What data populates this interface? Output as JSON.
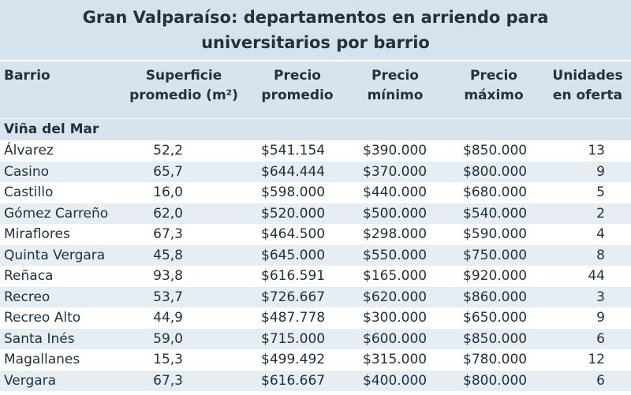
{
  "title": {
    "line1": "Gran Valparaíso: departamentos en arriendo para",
    "line2": "universitarios por barrio"
  },
  "colors": {
    "header_band": "#d4e3ee",
    "row_alt": "#e6eef4",
    "text": "#22313c"
  },
  "chart_data": {
    "type": "table",
    "title": "Gran Valparaíso: departamentos en arriendo para universitarios por barrio",
    "columns": [
      "Barrio",
      "Superficie promedio (m²)",
      "Precio promedio",
      "Precio mínimo",
      "Precio máximo",
      "Unidades en oferta"
    ],
    "column_headers": {
      "barrio": "Barrio",
      "sup_l1": "Superficie",
      "sup_l2": "promedio (m²)",
      "prom_l1": "Precio",
      "prom_l2": "promedio",
      "min_l1": "Precio",
      "min_l2": "mínimo",
      "max_l1": "Precio",
      "max_l2": "máximo",
      "uni_l1": "Unidades",
      "uni_l2": "en oferta"
    },
    "section": "Viña del Mar",
    "rows": [
      {
        "barrio": "Álvarez",
        "superficie": "52,2",
        "precio_promedio": "$541.154",
        "precio_minimo": "$390.000",
        "precio_maximo": "$850.000",
        "unidades": "13"
      },
      {
        "barrio": "Casino",
        "superficie": "65,7",
        "precio_promedio": "$644.444",
        "precio_minimo": "$370.000",
        "precio_maximo": "$800.000",
        "unidades": "9"
      },
      {
        "barrio": "Castillo",
        "superficie": "16,0",
        "precio_promedio": "$598.000",
        "precio_minimo": "$440.000",
        "precio_maximo": "$680.000",
        "unidades": "5"
      },
      {
        "barrio": "Gómez Carreño",
        "superficie": "62,0",
        "precio_promedio": "$520.000",
        "precio_minimo": "$500.000",
        "precio_maximo": "$540.000",
        "unidades": "2"
      },
      {
        "barrio": "Miraflores",
        "superficie": "67,3",
        "precio_promedio": "$464.500",
        "precio_minimo": "$298.000",
        "precio_maximo": "$590.000",
        "unidades": "4"
      },
      {
        "barrio": "Quinta Vergara",
        "superficie": "45,8",
        "precio_promedio": "$645.000",
        "precio_minimo": "$550.000",
        "precio_maximo": "$750.000",
        "unidades": "8"
      },
      {
        "barrio": "Reñaca",
        "superficie": "93,8",
        "precio_promedio": "$616.591",
        "precio_minimo": "$165.000",
        "precio_maximo": "$920.000",
        "unidades": "44"
      },
      {
        "barrio": "Recreo",
        "superficie": "53,7",
        "precio_promedio": "$726.667",
        "precio_minimo": "$620.000",
        "precio_maximo": "$860.000",
        "unidades": "3"
      },
      {
        "barrio": "Recreo Alto",
        "superficie": "44,9",
        "precio_promedio": "$487.778",
        "precio_minimo": "$300.000",
        "precio_maximo": "$650.000",
        "unidades": "9"
      },
      {
        "barrio": "Santa Inés",
        "superficie": "59,0",
        "precio_promedio": "$715.000",
        "precio_minimo": "$600.000",
        "precio_maximo": "$850.000",
        "unidades": "6"
      },
      {
        "barrio": "Magallanes",
        "superficie": "15,3",
        "precio_promedio": "$499.492",
        "precio_minimo": "$315.000",
        "precio_maximo": "$780.000",
        "unidades": "12"
      },
      {
        "barrio": "Vergara",
        "superficie": "67,3",
        "precio_promedio": "$616.667",
        "precio_minimo": "$400.000",
        "precio_maximo": "$800.000",
        "unidades": "6"
      }
    ]
  }
}
